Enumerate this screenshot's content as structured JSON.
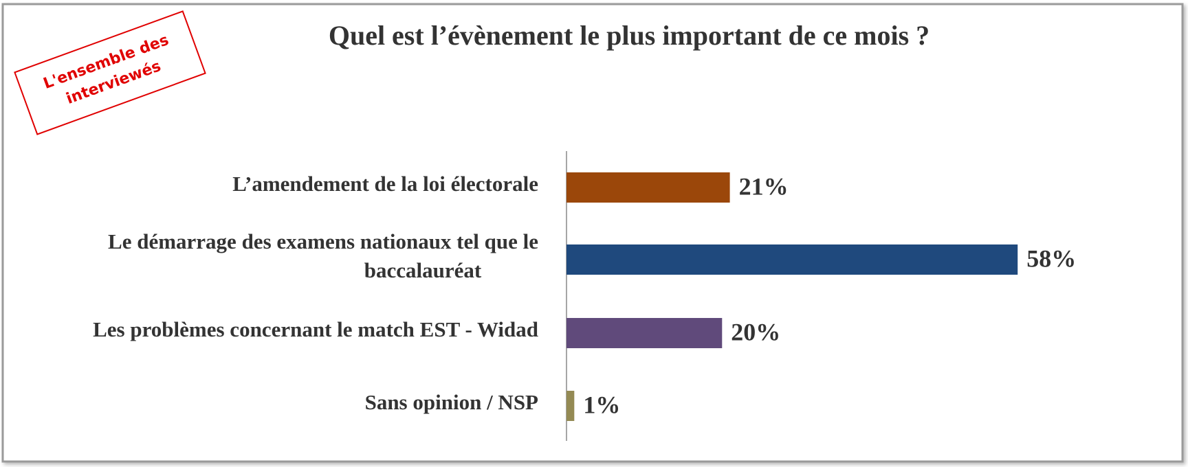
{
  "chart_data": {
    "type": "barh",
    "title": "Quel est l’évènement le plus important de ce mois ?",
    "annotation": [
      "L'ensemble des",
      "interviewés"
    ],
    "categories": [
      [
        "L’amendement de la loi électorale"
      ],
      [
        "Le démarrage  des examens nationaux tel que le",
        "baccalauréat"
      ],
      [
        "Les problèmes concernant le match EST - Widad"
      ],
      [
        "Sans opinion / NSP"
      ]
    ],
    "values": [
      21,
      58,
      20,
      1
    ],
    "value_labels": [
      "21%",
      "58%",
      "20%",
      "1%"
    ],
    "colors": [
      "#9b470a",
      "#1f497d",
      "#604a7b",
      "#948a54"
    ],
    "xlim": [
      0,
      70
    ]
  }
}
